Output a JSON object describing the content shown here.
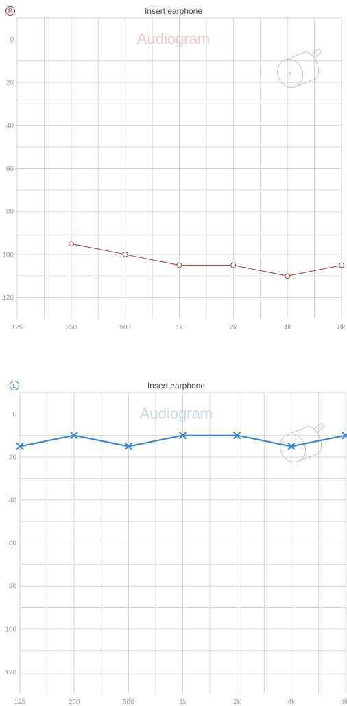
{
  "chart_data": [
    {
      "type": "line",
      "ear_label": "R",
      "title": "Insert earphone",
      "watermark": "Audiogram",
      "x_ticks": [
        "125",
        "250",
        "500",
        "1k",
        "2k",
        "4k",
        "8k"
      ],
      "y_ticks": [
        "0",
        "20",
        "40",
        "60",
        "80",
        "100",
        "120"
      ],
      "ylim": [
        -10,
        130
      ],
      "y_inverted": true,
      "grid": true,
      "series": [
        {
          "marker": "circle",
          "color": "#9b3a3a",
          "points": [
            {
              "x": "250",
              "y": 95
            },
            {
              "x": "500",
              "y": 100
            },
            {
              "x": "1k",
              "y": 105
            },
            {
              "x": "2k",
              "y": 105
            },
            {
              "x": "4k",
              "y": 110
            },
            {
              "x": "8k",
              "y": 105
            }
          ]
        }
      ],
      "colors": {
        "accent": "#9b3a3a",
        "watermark": "#f1c9c3",
        "icon": "#bdbdbd"
      },
      "icon": "insert-earphone-icon"
    },
    {
      "type": "line",
      "ear_label": "L",
      "title": "Insert earphone",
      "watermark": "Audiogram",
      "x_ticks": [
        "125",
        "250",
        "500",
        "1k",
        "2k",
        "4k",
        "8k"
      ],
      "y_ticks": [
        "0",
        "20",
        "40",
        "60",
        "80",
        "100",
        "120"
      ],
      "ylim": [
        -10,
        130
      ],
      "y_inverted": true,
      "grid": true,
      "series": [
        {
          "marker": "cross",
          "color": "#3d85c6",
          "points": [
            {
              "x": "125",
              "y": 15
            },
            {
              "x": "250",
              "y": 10
            },
            {
              "x": "500",
              "y": 15
            },
            {
              "x": "1k",
              "y": 10
            },
            {
              "x": "2k",
              "y": 10
            },
            {
              "x": "4k",
              "y": 15
            },
            {
              "x": "8k",
              "y": 10
            }
          ]
        }
      ],
      "colors": {
        "accent": "#3d85c6",
        "watermark": "#c5d9ee",
        "icon": "#bdbdbd"
      },
      "icon": "insert-earphone-icon"
    }
  ]
}
